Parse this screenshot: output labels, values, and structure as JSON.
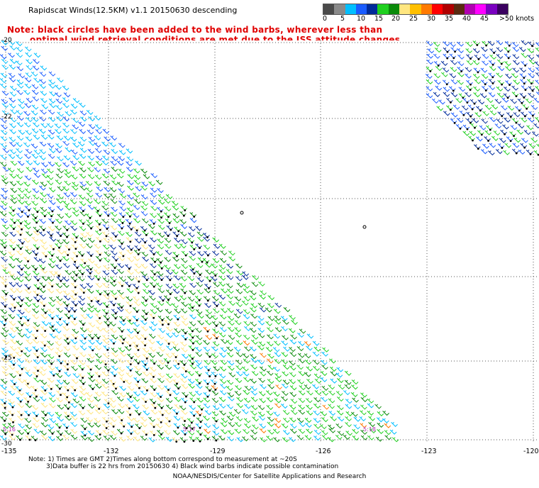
{
  "title": "Rapidscat Winds(12.5KM) v1.1 20150630 descending",
  "note_line1": "Note: black circles have been added to the wind barbs, wherever less than",
  "note_line2": "optimal wind retrieval conditions are met due to the ISS attitude changes.",
  "scale": {
    "colors": [
      "#4a4a4a",
      "#8a8a8a",
      "#00bfff",
      "#1a5cff",
      "#002b9a",
      "#1fd01f",
      "#0a8a0a",
      "#ffe680",
      "#ffbf00",
      "#ff7a00",
      "#ff0000",
      "#b00000",
      "#5a2a10",
      "#b000b0",
      "#ff00ff",
      "#7a00c0",
      "#3a0060"
    ],
    "labels": [
      "0",
      "5",
      "10",
      "15",
      "20",
      "25",
      "30",
      "35",
      "40",
      "45",
      ">50 knots"
    ]
  },
  "map": {
    "lat_labels": [
      "-20",
      "-22",
      "-25",
      "-30"
    ],
    "lon_labels": [
      "-135",
      "-132",
      "-129",
      "-126",
      "-123",
      "-120"
    ],
    "timestamps": [
      "5:16",
      "5:17",
      "5:18"
    ]
  },
  "footer_line1": "Note: 1) Times are GMT 2)Times along bottom correspond to measurement at ~20S",
  "footer_line2": "3)Data buffer is 22 hrs from 20150630 4) Black wind barbs indicate possible contamination",
  "credit": "NOAA/NESDIS/Center for Satellite Applications and Research"
}
